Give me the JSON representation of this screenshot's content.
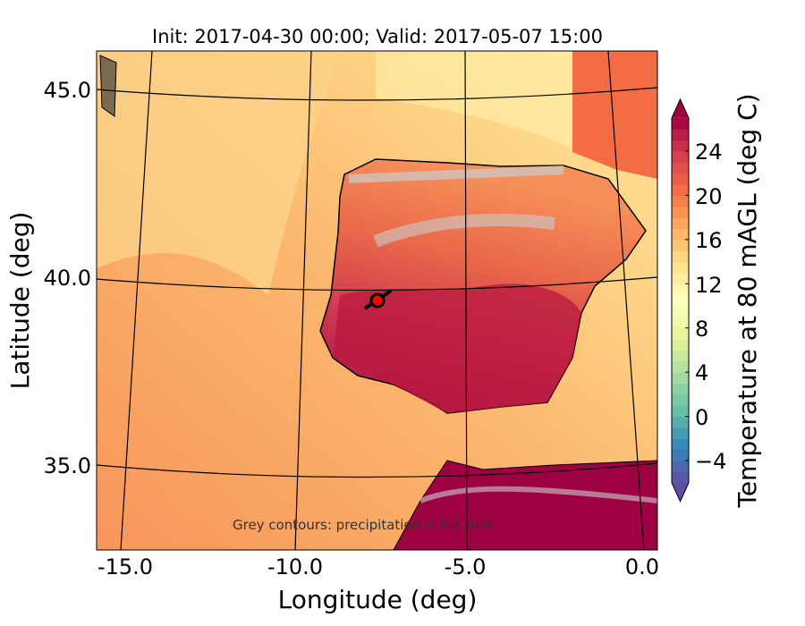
{
  "title": "Init: 2017-04-30 00:00; Valid: 2017-05-07 15:00",
  "xlabel": "Longitude (deg)",
  "ylabel": "Latitude (deg)",
  "annotation": "Grey contours: precipitation ≥ 0.5 mm",
  "chart_data": {
    "type": "heatmap",
    "title": "Init: 2017-04-30 00:00; Valid: 2017-05-07 15:00",
    "xlabel": "Longitude (deg)",
    "ylabel": "Latitude (deg)",
    "x_ticks": [
      "-15.0",
      "-10.0",
      "-5.0",
      "0.0"
    ],
    "y_ticks": [
      "45.0",
      "40.0",
      "35.0"
    ],
    "xlim": [
      -16,
      0.3
    ],
    "ylim": [
      32.8,
      46.2
    ],
    "marker": {
      "lon": -7.7,
      "lat": 39.4,
      "color": "#ff0000"
    },
    "colorbar": {
      "label": "Temperature at 80 mAGL (deg C)",
      "ticks": [
        "24",
        "20",
        "16",
        "12",
        "8",
        "4",
        "0",
        "−4"
      ],
      "tick_values": [
        24,
        20,
        16,
        12,
        8,
        4,
        0,
        -4
      ],
      "range": [
        -6,
        27
      ],
      "colormap": "Spectral_r",
      "extend": "both"
    }
  }
}
